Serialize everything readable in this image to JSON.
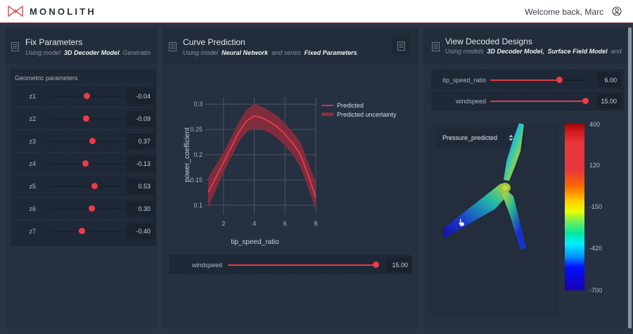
{
  "app": {
    "brand": "MONOLITH",
    "brand_color": "#e0404c",
    "welcome_text": "Welcome back, Marc",
    "user_icon": "user-circle-icon"
  },
  "panels": {
    "fix_parameters": {
      "title": "Fix Parameters",
      "subtitle_prefix": "Using model",
      "subtitle_model": "3D Decoder Model",
      "subtitle_suffix": ". Generatin",
      "group_title": "Geometric parameters",
      "params": [
        {
          "label": "z1",
          "value": "-0.04",
          "knob_pct": 48
        },
        {
          "label": "z2",
          "value": "-0.09",
          "knob_pct": 47
        },
        {
          "label": "z3",
          "value": "0.37",
          "knob_pct": 55
        },
        {
          "label": "z4",
          "value": "-0.13",
          "knob_pct": 46
        },
        {
          "label": "z5",
          "value": "0.53",
          "knob_pct": 58
        },
        {
          "label": "z6",
          "value": "0.30",
          "knob_pct": 54
        },
        {
          "label": "z7",
          "value": "-0.40",
          "knob_pct": 41
        }
      ]
    },
    "curve_prediction": {
      "title": "Curve Prediction",
      "subtitle_prefix": "Using model",
      "subtitle_model": "Neural Network",
      "subtitle_mid": "and series",
      "subtitle_series": "Fixed Parameters",
      "subtitle_end": ".",
      "slider": {
        "label": "windspeed",
        "value": "15.00"
      }
    },
    "view_decoded": {
      "title": "View Decoded Designs",
      "subtitle_prefix": "Using models",
      "subtitle_model1": "3D Decoder Model,",
      "subtitle_model2": "Surface Field Model",
      "subtitle_suffix": "and",
      "sliders": [
        {
          "label": "tip_speed_ratio",
          "value": "6.00"
        },
        {
          "label": "windspeed",
          "value": "15.00"
        }
      ],
      "field_select": "Pressure_predicted",
      "colorbar": {
        "ticks": [
          "400",
          "120",
          "-150",
          "-420",
          "-700"
        ],
        "range": [
          -700,
          400
        ]
      }
    }
  },
  "chart_data": {
    "type": "line",
    "title": "",
    "xlabel": "tip_speed_ratio",
    "ylabel": "power_coefficient",
    "xlim": [
      1,
      8
    ],
    "ylim": [
      0.09,
      0.31
    ],
    "xticks": [
      "2",
      "4",
      "6",
      "8"
    ],
    "yticks": [
      "0.1",
      "0.15",
      "0.2",
      "0.25",
      "0.3"
    ],
    "grid": true,
    "legend_position": "top-right-outside",
    "series": [
      {
        "name": "Predicted",
        "color": "#ff3b4e",
        "x": [
          1.0,
          1.5,
          2.0,
          2.5,
          3.0,
          3.5,
          4.0,
          4.5,
          5.0,
          5.5,
          6.0,
          6.5,
          7.0,
          7.5,
          8.0
        ],
        "y": [
          0.125,
          0.155,
          0.185,
          0.215,
          0.245,
          0.267,
          0.277,
          0.273,
          0.265,
          0.255,
          0.24,
          0.223,
          0.2,
          0.16,
          0.115
        ]
      },
      {
        "name": "Predicted uncertainty",
        "color": "#8a2e3c",
        "x": [
          1.0,
          1.5,
          2.0,
          2.5,
          3.0,
          3.5,
          4.0,
          4.5,
          5.0,
          5.5,
          6.0,
          6.5,
          7.0,
          7.5,
          8.0
        ],
        "lower": [
          0.095,
          0.13,
          0.165,
          0.195,
          0.225,
          0.245,
          0.252,
          0.25,
          0.243,
          0.232,
          0.218,
          0.2,
          0.175,
          0.135,
          0.09
        ],
        "upper": [
          0.155,
          0.18,
          0.205,
          0.235,
          0.265,
          0.29,
          0.3,
          0.295,
          0.287,
          0.277,
          0.262,
          0.245,
          0.225,
          0.185,
          0.145
        ]
      }
    ]
  }
}
